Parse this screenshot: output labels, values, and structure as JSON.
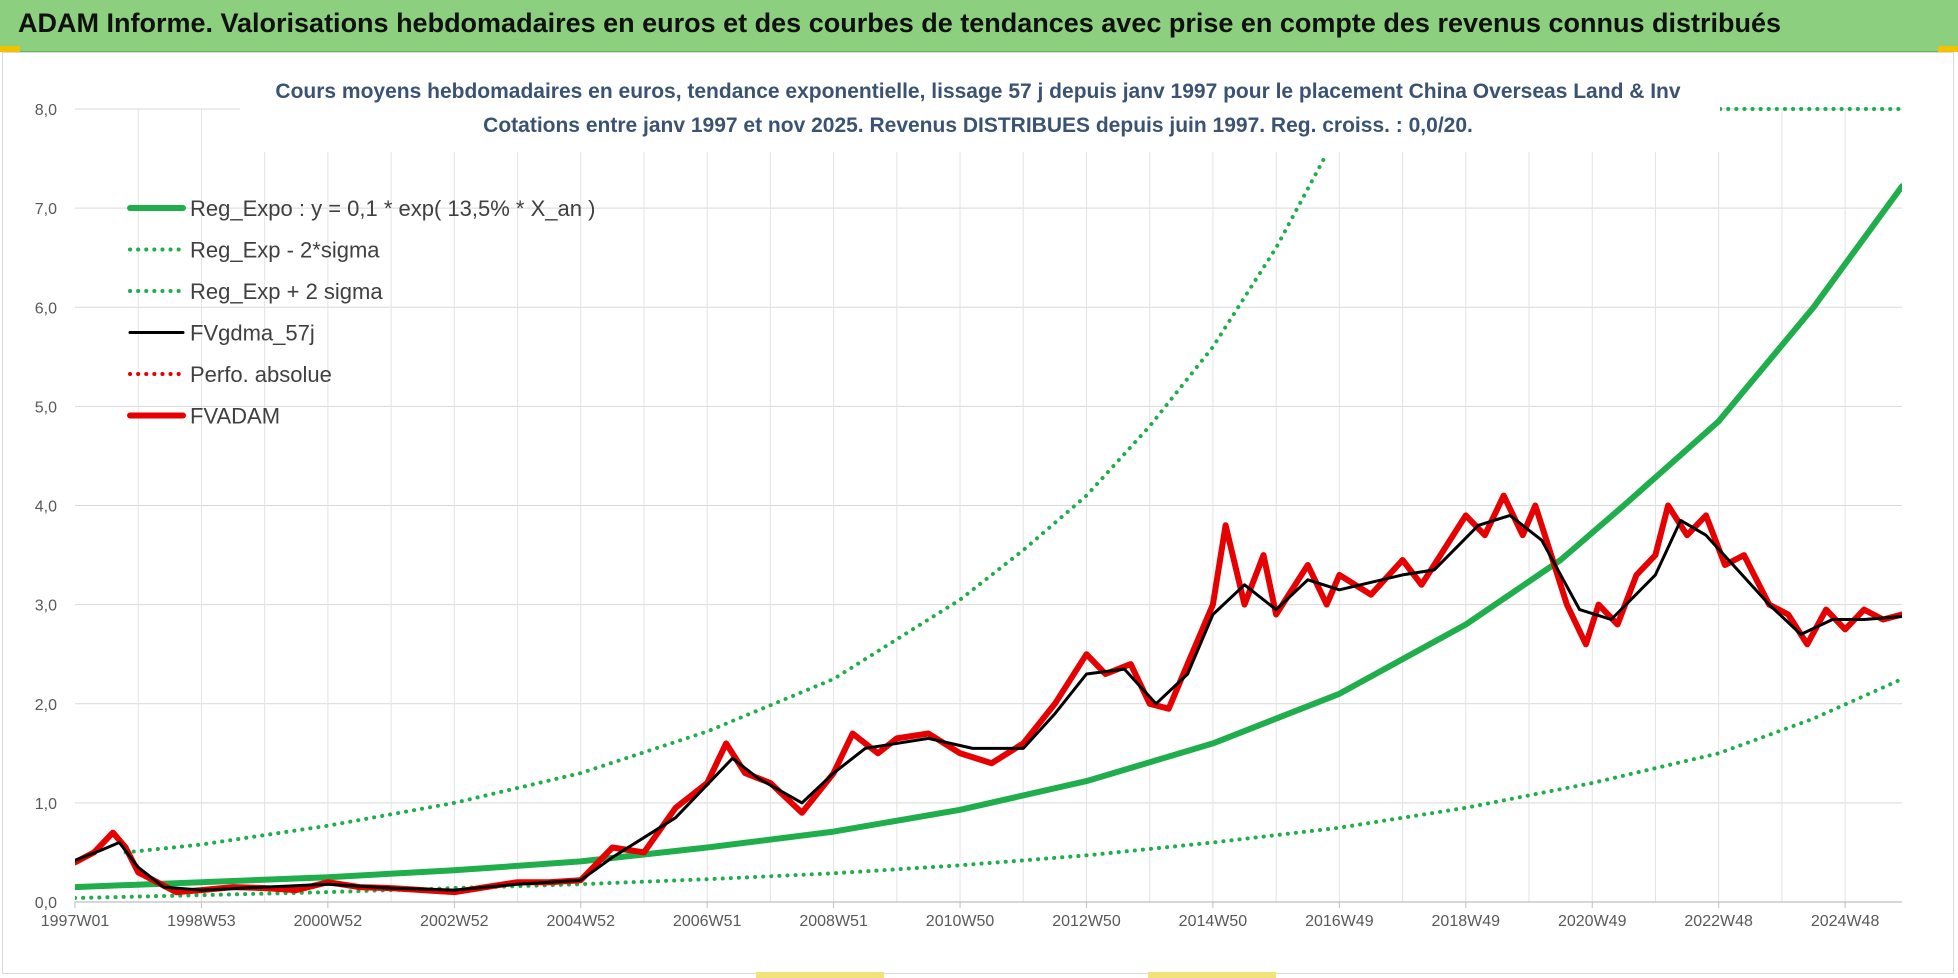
{
  "banner": {
    "title": "ADAM Informe. Valorisations hebdomadaires en euros et des courbes de tendances avec prise en compte des revenus connus distribués"
  },
  "chart_data": {
    "type": "line",
    "title": "Cours moyens hebdomadaires en euros, tendance exponentielle, lissage 57 j depuis janv 1997 pour le placement China Overseas Land & Inv",
    "subtitle": "Cotations entre janv 1997 et nov 2025. Revenus DISTRIBUES depuis juin 1997. Reg. croiss. : 0,0/20.",
    "xlabel": "",
    "ylabel": "",
    "xlim": [
      1997.0,
      2025.9
    ],
    "ylim": [
      0,
      8
    ],
    "y_ticks": [
      "0,0",
      "1,0",
      "2,0",
      "3,0",
      "4,0",
      "5,0",
      "6,0",
      "7,0",
      "8,0"
    ],
    "x_ticks": [
      {
        "label": "1997W01",
        "x": 1997.0
      },
      {
        "label": "1998W53",
        "x": 1999.0
      },
      {
        "label": "2000W52",
        "x": 2001.0
      },
      {
        "label": "2002W52",
        "x": 2003.0
      },
      {
        "label": "2004W52",
        "x": 2005.0
      },
      {
        "label": "2006W51",
        "x": 2007.0
      },
      {
        "label": "2008W51",
        "x": 2009.0
      },
      {
        "label": "2010W50",
        "x": 2011.0
      },
      {
        "label": "2012W50",
        "x": 2013.0
      },
      {
        "label": "2014W50",
        "x": 2015.0
      },
      {
        "label": "2016W49",
        "x": 2017.0
      },
      {
        "label": "2018W49",
        "x": 2019.0
      },
      {
        "label": "2020W49",
        "x": 2021.0
      },
      {
        "label": "2022W48",
        "x": 2023.0
      },
      {
        "label": "2024W48",
        "x": 2025.0
      }
    ],
    "grid": true,
    "legend_position": "top-left",
    "series": [
      {
        "name": "Reg_Expo : y = 0,1 * exp( 13,5% *  X_an )",
        "color": "#1fae4b",
        "style": "solid-thick",
        "points": [
          [
            1997.0,
            0.15
          ],
          [
            1999.0,
            0.2
          ],
          [
            2001.0,
            0.25
          ],
          [
            2003.0,
            0.32
          ],
          [
            2005.0,
            0.41
          ],
          [
            2007.0,
            0.55
          ],
          [
            2009.0,
            0.71
          ],
          [
            2011.0,
            0.93
          ],
          [
            2013.0,
            1.22
          ],
          [
            2015.0,
            1.6
          ],
          [
            2017.0,
            2.1
          ],
          [
            2019.0,
            2.8
          ],
          [
            2020.5,
            3.45
          ],
          [
            2021.5,
            4.0
          ],
          [
            2023.0,
            4.85
          ],
          [
            2024.5,
            6.0
          ],
          [
            2025.9,
            7.22
          ]
        ]
      },
      {
        "name": "Reg_Exp - 2*sigma",
        "color": "#1fae4b",
        "style": "dotted",
        "points": [
          [
            1997.0,
            0.04
          ],
          [
            1999.0,
            0.07
          ],
          [
            2001.0,
            0.1
          ],
          [
            2003.0,
            0.14
          ],
          [
            2005.0,
            0.18
          ],
          [
            2007.0,
            0.23
          ],
          [
            2009.0,
            0.29
          ],
          [
            2011.0,
            0.37
          ],
          [
            2013.0,
            0.47
          ],
          [
            2015.0,
            0.6
          ],
          [
            2017.0,
            0.75
          ],
          [
            2019.0,
            0.95
          ],
          [
            2021.0,
            1.2
          ],
          [
            2023.0,
            1.5
          ],
          [
            2024.5,
            1.85
          ],
          [
            2025.9,
            2.25
          ]
        ]
      },
      {
        "name": "Reg_Exp + 2 sigma",
        "color": "#1fae4b",
        "style": "dotted",
        "points": [
          [
            1997.8,
            0.5
          ],
          [
            1999.0,
            0.58
          ],
          [
            2001.0,
            0.77
          ],
          [
            2003.0,
            1.0
          ],
          [
            2005.0,
            1.3
          ],
          [
            2007.0,
            1.72
          ],
          [
            2009.0,
            2.25
          ],
          [
            2010.0,
            2.65
          ],
          [
            2011.0,
            3.05
          ],
          [
            2012.0,
            3.55
          ],
          [
            2013.0,
            4.1
          ],
          [
            2014.0,
            4.8
          ],
          [
            2015.0,
            5.6
          ],
          [
            2016.0,
            6.6
          ],
          [
            2016.8,
            7.55
          ]
        ]
      },
      {
        "name": "FVgdma_57j",
        "color": "#000000",
        "style": "solid",
        "points": [
          [
            1997.0,
            0.42
          ],
          [
            1997.4,
            0.52
          ],
          [
            1997.7,
            0.6
          ],
          [
            1998.0,
            0.35
          ],
          [
            1998.4,
            0.15
          ],
          [
            1999.0,
            0.12
          ],
          [
            2000.0,
            0.15
          ],
          [
            2001.0,
            0.18
          ],
          [
            2002.0,
            0.14
          ],
          [
            2003.0,
            0.12
          ],
          [
            2004.0,
            0.18
          ],
          [
            2005.0,
            0.22
          ],
          [
            2005.5,
            0.45
          ],
          [
            2006.5,
            0.85
          ],
          [
            2007.4,
            1.45
          ],
          [
            2007.8,
            1.25
          ],
          [
            2008.5,
            1.0
          ],
          [
            2009.0,
            1.3
          ],
          [
            2009.5,
            1.55
          ],
          [
            2010.5,
            1.65
          ],
          [
            2011.2,
            1.55
          ],
          [
            2012.0,
            1.55
          ],
          [
            2012.5,
            1.9
          ],
          [
            2013.0,
            2.3
          ],
          [
            2013.6,
            2.35
          ],
          [
            2014.1,
            2.0
          ],
          [
            2014.6,
            2.3
          ],
          [
            2015.0,
            2.9
          ],
          [
            2015.5,
            3.2
          ],
          [
            2016.0,
            2.95
          ],
          [
            2016.5,
            3.25
          ],
          [
            2017.0,
            3.15
          ],
          [
            2018.0,
            3.3
          ],
          [
            2018.5,
            3.35
          ],
          [
            2019.2,
            3.8
          ],
          [
            2019.7,
            3.9
          ],
          [
            2020.2,
            3.65
          ],
          [
            2020.8,
            2.95
          ],
          [
            2021.3,
            2.85
          ],
          [
            2022.0,
            3.3
          ],
          [
            2022.4,
            3.85
          ],
          [
            2022.8,
            3.7
          ],
          [
            2023.3,
            3.35
          ],
          [
            2023.8,
            3.0
          ],
          [
            2024.3,
            2.7
          ],
          [
            2024.8,
            2.85
          ],
          [
            2025.3,
            2.85
          ],
          [
            2025.9,
            2.88
          ]
        ]
      },
      {
        "name": "Perfo. absolue",
        "color": "#e60000",
        "style": "dotted",
        "points": []
      },
      {
        "name": "FVADAM",
        "color": "#e60000",
        "style": "solid-thick",
        "points": [
          [
            1997.0,
            0.4
          ],
          [
            1997.3,
            0.5
          ],
          [
            1997.6,
            0.7
          ],
          [
            1997.8,
            0.55
          ],
          [
            1998.0,
            0.3
          ],
          [
            1998.3,
            0.2
          ],
          [
            1998.6,
            0.1
          ],
          [
            1999.0,
            0.12
          ],
          [
            1999.5,
            0.15
          ],
          [
            2000.0,
            0.14
          ],
          [
            2000.5,
            0.12
          ],
          [
            2001.0,
            0.2
          ],
          [
            2001.5,
            0.15
          ],
          [
            2002.0,
            0.14
          ],
          [
            2002.5,
            0.12
          ],
          [
            2003.0,
            0.1
          ],
          [
            2003.5,
            0.15
          ],
          [
            2004.0,
            0.2
          ],
          [
            2004.5,
            0.2
          ],
          [
            2005.0,
            0.22
          ],
          [
            2005.5,
            0.55
          ],
          [
            2006.0,
            0.5
          ],
          [
            2006.5,
            0.95
          ],
          [
            2007.0,
            1.2
          ],
          [
            2007.3,
            1.6
          ],
          [
            2007.6,
            1.3
          ],
          [
            2008.0,
            1.2
          ],
          [
            2008.5,
            0.9
          ],
          [
            2009.0,
            1.3
          ],
          [
            2009.3,
            1.7
          ],
          [
            2009.7,
            1.5
          ],
          [
            2010.0,
            1.65
          ],
          [
            2010.5,
            1.7
          ],
          [
            2011.0,
            1.5
          ],
          [
            2011.5,
            1.4
          ],
          [
            2012.0,
            1.6
          ],
          [
            2012.5,
            2.0
          ],
          [
            2013.0,
            2.5
          ],
          [
            2013.3,
            2.3
          ],
          [
            2013.7,
            2.4
          ],
          [
            2014.0,
            2.0
          ],
          [
            2014.3,
            1.95
          ],
          [
            2014.6,
            2.4
          ],
          [
            2015.0,
            3.0
          ],
          [
            2015.2,
            3.8
          ],
          [
            2015.5,
            3.0
          ],
          [
            2015.8,
            3.5
          ],
          [
            2016.0,
            2.9
          ],
          [
            2016.5,
            3.4
          ],
          [
            2016.8,
            3.0
          ],
          [
            2017.0,
            3.3
          ],
          [
            2017.5,
            3.1
          ],
          [
            2018.0,
            3.45
          ],
          [
            2018.3,
            3.2
          ],
          [
            2018.6,
            3.5
          ],
          [
            2019.0,
            3.9
          ],
          [
            2019.3,
            3.7
          ],
          [
            2019.6,
            4.1
          ],
          [
            2019.9,
            3.7
          ],
          [
            2020.1,
            4.0
          ],
          [
            2020.3,
            3.6
          ],
          [
            2020.6,
            3.0
          ],
          [
            2020.9,
            2.6
          ],
          [
            2021.1,
            3.0
          ],
          [
            2021.4,
            2.8
          ],
          [
            2021.7,
            3.3
          ],
          [
            2022.0,
            3.5
          ],
          [
            2022.2,
            4.0
          ],
          [
            2022.5,
            3.7
          ],
          [
            2022.8,
            3.9
          ],
          [
            2023.1,
            3.4
          ],
          [
            2023.4,
            3.5
          ],
          [
            2023.8,
            3.0
          ],
          [
            2024.1,
            2.9
          ],
          [
            2024.4,
            2.6
          ],
          [
            2024.7,
            2.95
          ],
          [
            2025.0,
            2.75
          ],
          [
            2025.3,
            2.95
          ],
          [
            2025.6,
            2.85
          ],
          [
            2025.9,
            2.9
          ]
        ]
      }
    ]
  }
}
